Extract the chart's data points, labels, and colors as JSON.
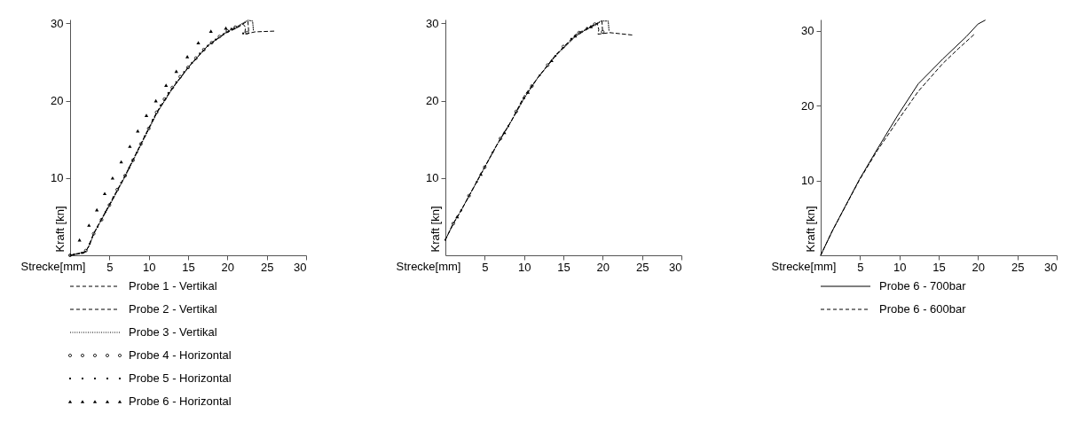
{
  "chart_data": [
    {
      "type": "line",
      "xlabel": "Strecke[mm]",
      "ylabel": "Kraft [kn]",
      "xlim": [
        0,
        30
      ],
      "ylim": [
        0,
        30.5
      ],
      "xticks": [
        5,
        10,
        15,
        20,
        25,
        30
      ],
      "yticks": [
        10,
        20,
        30
      ],
      "legend": "bottom",
      "series": [
        {
          "name": "Probe 1 - Vertikal",
          "type": "line",
          "line_style": "dashed",
          "color": "#000000",
          "x": [
            0,
            1.8,
            2.3,
            2.9,
            5,
            6.9,
            8.9,
            11,
            12.9,
            15.2,
            17.4,
            19.7,
            21.2,
            22,
            22.3,
            22.2,
            23.5,
            26
          ],
          "values": [
            0,
            0.3,
            1,
            2.6,
            6.5,
            10.1,
            14.2,
            18.5,
            21.5,
            24.5,
            27,
            28.7,
            29.4,
            29.9,
            29.5,
            28.6,
            28.9,
            29
          ]
        },
        {
          "name": "Probe 2 - Vertikal",
          "type": "line",
          "line_style": "dashed",
          "color": "#000000",
          "x": [
            0,
            1.9,
            2.4,
            3,
            5,
            7,
            9,
            11,
            13,
            15,
            17.5,
            19.8,
            21.2,
            22.6,
            22.7
          ],
          "values": [
            0,
            0.4,
            1.2,
            2.8,
            6.6,
            10.3,
            14.4,
            18.4,
            21.6,
            24.3,
            27.1,
            28.8,
            29.5,
            30.3,
            29
          ]
        },
        {
          "name": "Probe 3 - Vertikal",
          "type": "line",
          "line_style": "dotted",
          "color": "#000000",
          "x": [
            0,
            2,
            2.5,
            3.1,
            5.1,
            7.1,
            9.1,
            11.1,
            13.1,
            15.1,
            17.6,
            19.9,
            21.4,
            22.6,
            23.2,
            23.3
          ],
          "values": [
            0,
            0.5,
            1.4,
            3,
            6.6,
            10.4,
            14.5,
            18.5,
            21.7,
            24.4,
            27.2,
            28.9,
            29.7,
            30.4,
            30.3,
            29.1
          ]
        },
        {
          "name": "Probe 4 - Horizontal",
          "type": "scatter",
          "marker": "circle",
          "color": "#000000",
          "x": [
            0,
            2,
            3,
            4,
            5,
            6,
            7,
            8,
            9,
            10,
            11,
            12,
            13,
            14,
            15,
            16,
            17,
            18,
            19,
            20,
            21,
            22.5
          ],
          "values": [
            0,
            0.6,
            2.8,
            4.6,
            6.5,
            8.5,
            10.3,
            12.3,
            14.4,
            16.4,
            18.5,
            20.2,
            21.7,
            23.1,
            24.3,
            25.5,
            26.6,
            27.5,
            28.3,
            29,
            29.5,
            28.8
          ]
        },
        {
          "name": "Probe 5 - Horizontal",
          "type": "scatter",
          "marker": "square",
          "color": "#000000",
          "x": [
            0.5,
            1.5,
            2.5,
            3.5,
            4.5,
            5.5,
            6.5,
            7.5,
            8.5,
            9.5,
            10.5,
            11.5,
            12.5,
            13.5,
            14.5,
            15.5,
            16.5,
            17.5,
            18.5,
            19.5,
            20.5,
            22
          ],
          "values": [
            0.1,
            0.3,
            1.5,
            3.7,
            5.6,
            7.5,
            9.4,
            11.3,
            13.3,
            15.4,
            17.5,
            19.4,
            21,
            22.4,
            23.7,
            24.9,
            26.1,
            27.1,
            27.9,
            28.6,
            29.3,
            28.7
          ]
        },
        {
          "name": "Probe 6 - Horizontal",
          "type": "scatter",
          "marker": "triangle",
          "color": "#000000",
          "x": [
            1.2,
            2.4,
            3.4,
            4.4,
            5.4,
            6.5,
            7.6,
            8.6,
            9.7,
            10.9,
            12.2,
            13.5,
            14.9,
            16.3,
            17.9,
            19.8
          ],
          "values": [
            2,
            3.9,
            5.9,
            8,
            10,
            12.1,
            14.1,
            16.1,
            18.1,
            20,
            22,
            23.8,
            25.7,
            27.5,
            29,
            29.4
          ]
        }
      ]
    },
    {
      "type": "line",
      "xlabel": "Strecke[mm]",
      "ylabel": "Kraft [kn]",
      "xlim": [
        0,
        30
      ],
      "ylim": [
        0,
        30.5
      ],
      "xticks": [
        5,
        10,
        15,
        20,
        25,
        30
      ],
      "yticks": [
        10,
        20,
        30
      ],
      "series": [
        {
          "type": "line",
          "line_style": "dashed",
          "color": "#000000",
          "x": [
            0,
            0.9,
            2,
            3.5,
            5,
            6.5,
            8.4,
            10,
            11.7,
            14,
            16.6,
            18.5,
            19.3,
            19.5,
            19.4,
            20.9,
            23.7
          ],
          "values": [
            2,
            3.9,
            5.8,
            8.6,
            11.4,
            14.2,
            17.4,
            20.6,
            22.9,
            25.9,
            28.6,
            29.6,
            30,
            29.2,
            28.6,
            28.8,
            28.5
          ]
        },
        {
          "type": "line",
          "line_style": "dashed",
          "color": "#000000",
          "x": [
            0,
            1,
            2,
            3.5,
            5,
            6.5,
            8.4,
            10,
            11.7,
            14,
            16.6,
            18.5,
            19.9,
            20
          ],
          "values": [
            2,
            4.1,
            5.8,
            8.6,
            11.4,
            14.2,
            17.4,
            20.3,
            22.9,
            25.8,
            28.4,
            29.5,
            30.3,
            28.7
          ]
        },
        {
          "type": "line",
          "line_style": "dotted",
          "color": "#000000",
          "x": [
            0,
            1,
            2,
            3.5,
            5,
            6.5,
            8.4,
            10,
            11.7,
            14,
            16.6,
            18.5,
            19.8,
            20.7,
            20.8
          ],
          "values": [
            2,
            4.1,
            5.8,
            8.6,
            11.4,
            14.2,
            17.4,
            20.3,
            22.9,
            25.8,
            28.4,
            29.6,
            30.3,
            30.3,
            29
          ]
        },
        {
          "type": "scatter",
          "marker": "circle",
          "color": "#000000",
          "x": [
            1,
            3,
            5,
            7,
            9,
            11,
            13,
            15,
            17,
            19,
            20
          ],
          "values": [
            4.1,
            7.7,
            11.4,
            15.1,
            18.6,
            21.9,
            24.6,
            27,
            28.8,
            29.9,
            28.9
          ]
        },
        {
          "type": "scatter",
          "marker": "square",
          "color": "#000000",
          "x": [
            0,
            2,
            4,
            6,
            8,
            10,
            12,
            14,
            16,
            18
          ],
          "values": [
            2,
            5.8,
            9.5,
            13.3,
            16.7,
            20.3,
            23.3,
            25.8,
            28,
            29.4
          ]
        },
        {
          "type": "scatter",
          "marker": "triangle",
          "color": "#000000",
          "x": [
            1.5,
            4.5,
            7.5,
            10.5,
            13.5,
            16.5,
            18.5
          ],
          "values": [
            5,
            10.5,
            15.9,
            21.1,
            25.2,
            28.4,
            29.6
          ]
        }
      ]
    },
    {
      "type": "line",
      "xlabel": "Strecke[mm]",
      "ylabel": "Kraft [kn]",
      "xlim": [
        0,
        30
      ],
      "ylim": [
        0,
        31.5
      ],
      "xticks": [
        5,
        10,
        15,
        20,
        25,
        30
      ],
      "yticks": [
        10,
        20,
        30
      ],
      "legend": "bottom",
      "series": [
        {
          "name": "Probe 6 - 700bar",
          "type": "line",
          "line_style": "solid",
          "color": "#000000",
          "x": [
            0,
            1.5,
            4.9,
            7.2,
            9.8,
            12.4,
            15.5,
            18.5,
            20,
            20.9
          ],
          "values": [
            0,
            3.3,
            10.1,
            14.2,
            18.7,
            22.9,
            26.2,
            29.2,
            30.9,
            31.4
          ]
        },
        {
          "name": "Probe 6 - 600bar",
          "type": "line",
          "line_style": "dashed",
          "color": "#000000",
          "x": [
            0,
            1.5,
            4.9,
            7.2,
            9.8,
            12.4,
            15.5,
            17.5,
            19.5
          ],
          "values": [
            0,
            3.3,
            10,
            14,
            18,
            21.9,
            25.6,
            27.6,
            29.5
          ]
        }
      ]
    }
  ]
}
